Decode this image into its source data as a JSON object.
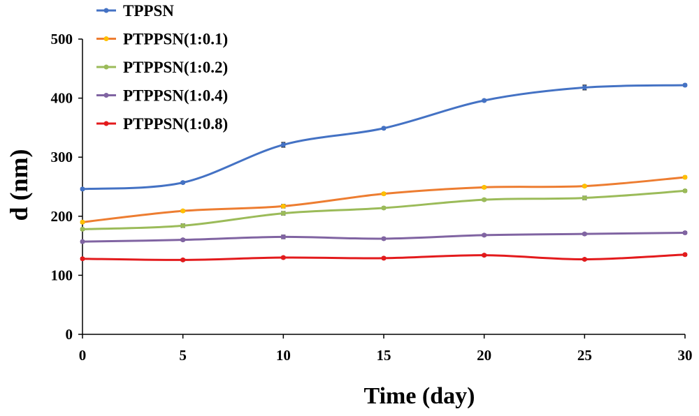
{
  "chart_data": {
    "type": "line",
    "title": "",
    "xlabel": "Time (day)",
    "ylabel": "d (nm)",
    "xlim": [
      0,
      30
    ],
    "ylim": [
      0,
      500
    ],
    "x_ticks": [
      0,
      5,
      10,
      15,
      20,
      25,
      30
    ],
    "y_ticks": [
      0,
      100,
      200,
      300,
      400,
      500
    ],
    "grid": false,
    "legend_position": "top-left",
    "x": [
      0,
      5,
      10,
      15,
      20,
      25,
      30
    ],
    "series": [
      {
        "name": "TPPSN",
        "color": "#4472C4",
        "values": [
          246,
          257,
          321,
          349,
          396,
          418,
          422
        ],
        "errors": [
          2,
          2,
          4,
          2,
          2,
          4,
          2
        ]
      },
      {
        "name": "PTPPSN(1:0.1)",
        "color": "#ED7D31",
        "marker_color": "#FFC000",
        "values": [
          190,
          209,
          217,
          238,
          249,
          251,
          266
        ],
        "errors": [
          2,
          2,
          3,
          2,
          2,
          2,
          2
        ]
      },
      {
        "name": "PTPPSN(1:0.2)",
        "color": "#9BBB59",
        "values": [
          178,
          184,
          205,
          214,
          228,
          231,
          243
        ],
        "errors": [
          2,
          3,
          3,
          2,
          2,
          3,
          2
        ]
      },
      {
        "name": "PTPPSN(1:0.4)",
        "color": "#8064A2",
        "values": [
          157,
          160,
          165,
          162,
          168,
          170,
          172
        ],
        "errors": [
          2,
          2,
          3,
          2,
          2,
          2,
          2
        ]
      },
      {
        "name": "PTPPSN(1:0.8)",
        "color": "#E31A1C",
        "values": [
          128,
          126,
          130,
          129,
          134,
          127,
          135
        ],
        "errors": [
          2,
          2,
          2,
          2,
          2,
          2,
          2
        ]
      }
    ]
  }
}
